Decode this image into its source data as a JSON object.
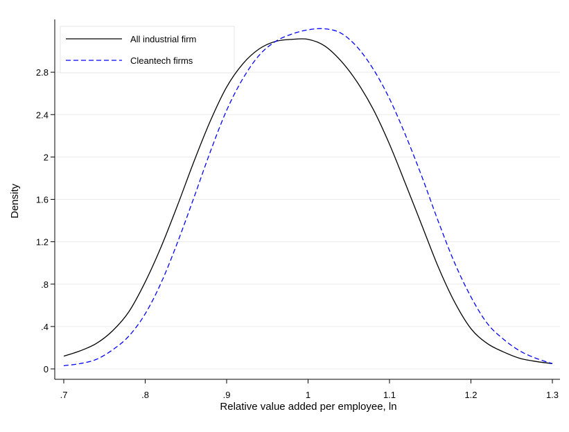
{
  "chart_data": {
    "type": "line",
    "title": "",
    "xlabel": "Relative value added per employee, ln",
    "ylabel": "Density",
    "xlim": [
      0.7,
      1.3
    ],
    "ylim": [
      0,
      3.2
    ],
    "x_ticks": [
      0.7,
      0.8,
      0.9,
      1.0,
      1.1,
      1.2,
      1.3
    ],
    "x_tick_labels": [
      ".7",
      ".8",
      ".9",
      "1",
      "1.1",
      "1.2",
      "1.3"
    ],
    "y_ticks": [
      0,
      0.4,
      0.8,
      1.2,
      1.6,
      2.0,
      2.4,
      2.8
    ],
    "y_tick_labels": [
      "0",
      ".4",
      ".8",
      "1.2",
      "1.6",
      "2",
      "2.4",
      "2.8"
    ],
    "grid": "horizontal",
    "legend_position": "top-left",
    "series": [
      {
        "name": "All industrial firm",
        "color": "#000000",
        "dash": "solid",
        "x": [
          0.7,
          0.72,
          0.74,
          0.76,
          0.78,
          0.8,
          0.82,
          0.84,
          0.86,
          0.88,
          0.9,
          0.92,
          0.94,
          0.96,
          0.98,
          1.0,
          1.02,
          1.04,
          1.06,
          1.08,
          1.1,
          1.12,
          1.14,
          1.16,
          1.18,
          1.2,
          1.22,
          1.24,
          1.26,
          1.28,
          1.3
        ],
        "y": [
          0.12,
          0.17,
          0.24,
          0.36,
          0.54,
          0.82,
          1.16,
          1.55,
          1.96,
          2.34,
          2.66,
          2.88,
          3.02,
          3.09,
          3.11,
          3.11,
          3.05,
          2.91,
          2.71,
          2.45,
          2.12,
          1.74,
          1.35,
          0.96,
          0.63,
          0.38,
          0.24,
          0.16,
          0.1,
          0.07,
          0.05
        ]
      },
      {
        "name": "Cleantech firms",
        "color": "#0000ff",
        "dash": "dashed",
        "x": [
          0.7,
          0.72,
          0.74,
          0.76,
          0.78,
          0.8,
          0.82,
          0.84,
          0.86,
          0.88,
          0.9,
          0.92,
          0.94,
          0.96,
          0.98,
          1.0,
          1.02,
          1.04,
          1.06,
          1.08,
          1.1,
          1.12,
          1.14,
          1.16,
          1.18,
          1.2,
          1.22,
          1.24,
          1.26,
          1.28,
          1.3
        ],
        "y": [
          0.03,
          0.05,
          0.09,
          0.18,
          0.31,
          0.52,
          0.82,
          1.2,
          1.62,
          2.05,
          2.44,
          2.74,
          2.96,
          3.09,
          3.16,
          3.2,
          3.21,
          3.17,
          3.04,
          2.83,
          2.55,
          2.2,
          1.81,
          1.39,
          1.0,
          0.68,
          0.43,
          0.28,
          0.17,
          0.1,
          0.05
        ]
      }
    ]
  }
}
